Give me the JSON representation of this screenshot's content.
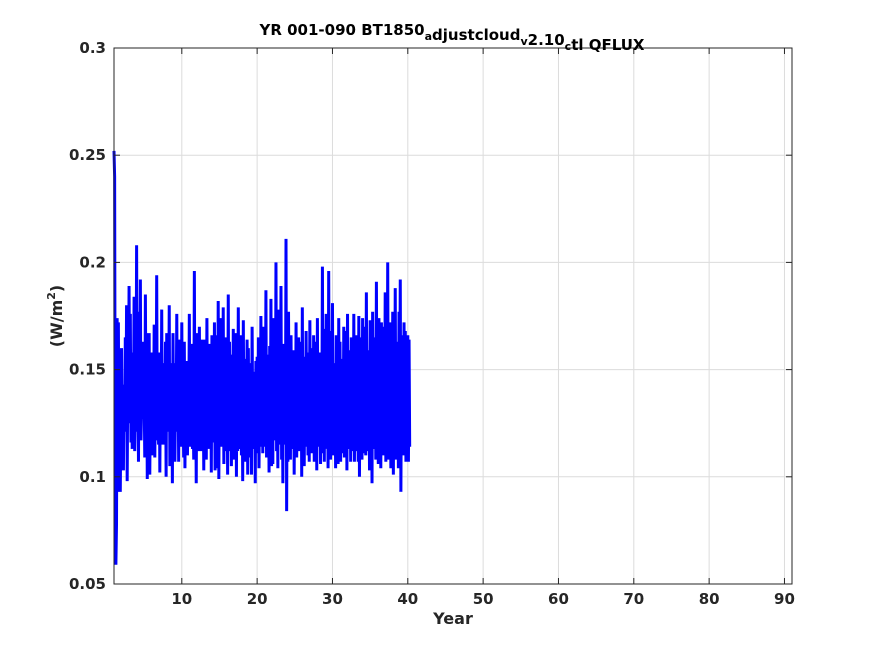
{
  "chart_data": {
    "type": "line",
    "title_parts": [
      {
        "text": "YR 001-090 BT1850",
        "sub": false
      },
      {
        "text": "a",
        "sub": true
      },
      {
        "text": "djustcloud",
        "sub": false
      },
      {
        "text": "v",
        "sub": true
      },
      {
        "text": "2.10",
        "sub": false
      },
      {
        "text": "c",
        "sub": true
      },
      {
        "text": "tl QFLUX",
        "sub": false
      }
    ],
    "xlabel": "Year",
    "ylabel_main": "(W/m",
    "ylabel_sup": "2",
    "ylabel_end": ")",
    "xlim": [
      1,
      91
    ],
    "ylim": [
      0.05,
      0.3
    ],
    "xticks": [
      10,
      20,
      30,
      40,
      50,
      60,
      70,
      80,
      90
    ],
    "yticks": [
      0.05,
      0.1,
      0.15,
      0.2,
      0.25,
      0.3
    ],
    "ytick_labels": [
      "0.05",
      "0.1",
      "0.15",
      "0.2",
      "0.25",
      "0.3"
    ],
    "grid": true,
    "series": [
      {
        "color": "#0000ff",
        "start_x": 1,
        "step": 0.0833333,
        "values": [
          0.252,
          0.24,
          0.085,
          0.059,
          0.078,
          0.174,
          0.098,
          0.172,
          0.093,
          0.135,
          0.093,
          0.13,
          0.16,
          0.106,
          0.135,
          0.103,
          0.143,
          0.121,
          0.165,
          0.124,
          0.18,
          0.098,
          0.149,
          0.136,
          0.189,
          0.125,
          0.176,
          0.116,
          0.158,
          0.113,
          0.14,
          0.124,
          0.184,
          0.112,
          0.132,
          0.123,
          0.208,
          0.121,
          0.157,
          0.107,
          0.177,
          0.127,
          0.192,
          0.117,
          0.134,
          0.132,
          0.163,
          0.127,
          0.141,
          0.109,
          0.185,
          0.123,
          0.167,
          0.099,
          0.151,
          0.126,
          0.167,
          0.101,
          0.138,
          0.129,
          0.158,
          0.11,
          0.149,
          0.124,
          0.171,
          0.109,
          0.141,
          0.119,
          0.194,
          0.117,
          0.152,
          0.115,
          0.158,
          0.102,
          0.148,
          0.121,
          0.178,
          0.115,
          0.137,
          0.123,
          0.153,
          0.115,
          0.163,
          0.1,
          0.167,
          0.121,
          0.139,
          0.127,
          0.18,
          0.105,
          0.149,
          0.119,
          0.153,
          0.097,
          0.167,
          0.116,
          0.153,
          0.107,
          0.139,
          0.127,
          0.176,
          0.121,
          0.149,
          0.107,
          0.164,
          0.124,
          0.149,
          0.114,
          0.172,
          0.114,
          0.133,
          0.109,
          0.163,
          0.104,
          0.148,
          0.118,
          0.154,
          0.11,
          0.139,
          0.122,
          0.176,
          0.114,
          0.153,
          0.124,
          0.162,
          0.113,
          0.135,
          0.108,
          0.196,
          0.111,
          0.149,
          0.097,
          0.167,
          0.117,
          0.147,
          0.112,
          0.17,
          0.118,
          0.159,
          0.112,
          0.164,
          0.121,
          0.146,
          0.103,
          0.164,
          0.11,
          0.152,
          0.108,
          0.174,
          0.12,
          0.141,
          0.113,
          0.162,
          0.122,
          0.157,
          0.102,
          0.166,
          0.116,
          0.155,
          0.119,
          0.172,
          0.103,
          0.139,
          0.116,
          0.166,
          0.104,
          0.182,
          0.099,
          0.167,
          0.117,
          0.174,
          0.114,
          0.149,
          0.124,
          0.179,
          0.106,
          0.155,
          0.112,
          0.165,
          0.116,
          0.154,
          0.101,
          0.185,
          0.112,
          0.163,
          0.117,
          0.157,
          0.105,
          0.146,
          0.121,
          0.169,
          0.108,
          0.158,
          0.112,
          0.167,
          0.1,
          0.164,
          0.112,
          0.179,
          0.113,
          0.151,
          0.121,
          0.166,
          0.11,
          0.156,
          0.098,
          0.173,
          0.118,
          0.155,
          0.107,
          0.145,
          0.115,
          0.164,
          0.101,
          0.16,
          0.115,
          0.142,
          0.109,
          0.153,
          0.101,
          0.17,
          0.123,
          0.149,
          0.113,
          0.148,
          0.097,
          0.154,
          0.115,
          0.156,
          0.111,
          0.165,
          0.104,
          0.149,
          0.114,
          0.175,
          0.119,
          0.148,
          0.111,
          0.17,
          0.114,
          0.152,
          0.118,
          0.187,
          0.109,
          0.157,
          0.114,
          0.146,
          0.102,
          0.161,
          0.112,
          0.183,
          0.105,
          0.149,
          0.106,
          0.174,
          0.119,
          0.154,
          0.117,
          0.2,
          0.112,
          0.153,
          0.104,
          0.178,
          0.121,
          0.155,
          0.115,
          0.189,
          0.108,
          0.147,
          0.097,
          0.162,
          0.116,
          0.16,
          0.115,
          0.211,
          0.084,
          0.163,
          0.107,
          0.177,
          0.12,
          0.146,
          0.108,
          0.166,
          0.114,
          0.153,
          0.113,
          0.159,
          0.101,
          0.158,
          0.112,
          0.172,
          0.109,
          0.146,
          0.123,
          0.165,
          0.112,
          0.151,
          0.117,
          0.163,
          0.1,
          0.179,
          0.111,
          0.156,
          0.105,
          0.151,
          0.114,
          0.168,
          0.118,
          0.158,
          0.11,
          0.153,
          0.107,
          0.173,
          0.115,
          0.146,
          0.111,
          0.16,
          0.12,
          0.166,
          0.107,
          0.16,
          0.109,
          0.163,
          0.103,
          0.174,
          0.114,
          0.155,
          0.117,
          0.158,
          0.106,
          0.148,
          0.12,
          0.198,
          0.111,
          0.16,
          0.107,
          0.169,
          0.114,
          0.176,
          0.113,
          0.152,
          0.104,
          0.196,
          0.115,
          0.168,
          0.108,
          0.158,
          0.112,
          0.181,
          0.11,
          0.153,
          0.118,
          0.153,
          0.104,
          0.166,
          0.121,
          0.158,
          0.106,
          0.174,
          0.114,
          0.163,
          0.107,
          0.155,
          0.111,
          0.148,
          0.116,
          0.17,
          0.109,
          0.168,
          0.111,
          0.155,
          0.103,
          0.176,
          0.117,
          0.159,
          0.113,
          0.158,
          0.107,
          0.165,
          0.116,
          0.164,
          0.112,
          0.176,
          0.107,
          0.152,
          0.112,
          0.166,
          0.115,
          0.149,
          0.107,
          0.175,
          0.1,
          0.165,
          0.115,
          0.155,
          0.108,
          0.174,
          0.116,
          0.17,
          0.111,
          0.168,
          0.11,
          0.186,
          0.112,
          0.152,
          0.116,
          0.159,
          0.103,
          0.173,
          0.111,
          0.158,
          0.097,
          0.177,
          0.113,
          0.16,
          0.115,
          0.165,
          0.108,
          0.191,
          0.114,
          0.156,
          0.106,
          0.174,
          0.112,
          0.164,
          0.104,
          0.172,
          0.119,
          0.148,
          0.11,
          0.17,
          0.113,
          0.186,
          0.107,
          0.16,
          0.112,
          0.2,
          0.108,
          0.162,
          0.114,
          0.172,
          0.104,
          0.165,
          0.118,
          0.177,
          0.101,
          0.169,
          0.114,
          0.188,
          0.108,
          0.163,
          0.111,
          0.159,
          0.104,
          0.177,
          0.116,
          0.192,
          0.093,
          0.158,
          0.117,
          0.166,
          0.11,
          0.172,
          0.114,
          0.168,
          0.107,
          0.162,
          0.111,
          0.166,
          0.107,
          0.164,
          0.114
        ]
      }
    ]
  }
}
